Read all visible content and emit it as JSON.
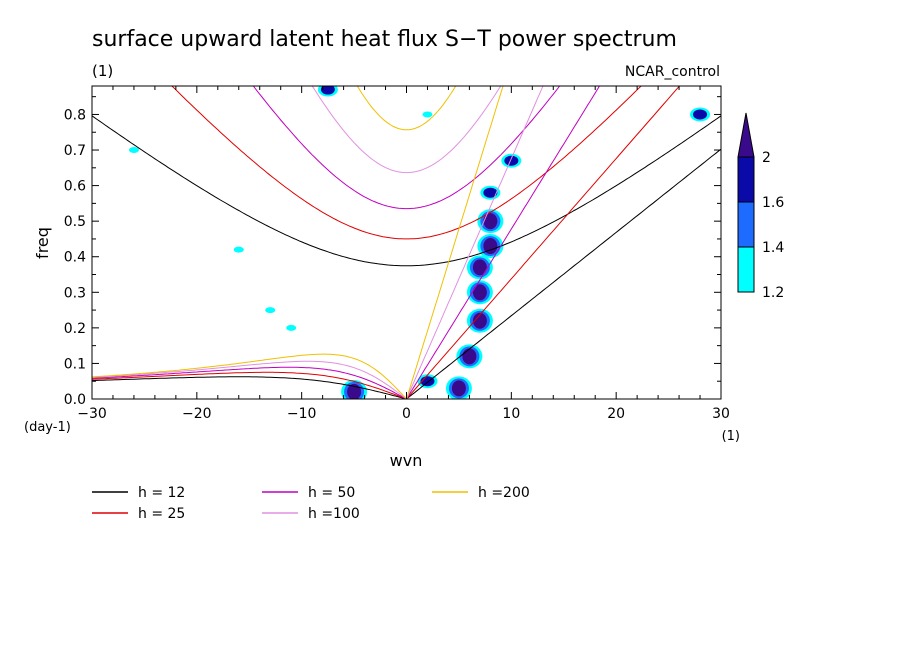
{
  "chart_data": {
    "type": "contour",
    "title": "surface upward latent heat flux S−T power spectrum",
    "subtitle_left": "(1)",
    "subtitle_right": "NCAR_control",
    "xlabel": "wvn",
    "ylabel": "freq",
    "x_unit": "(1)",
    "y_unit": "(day-1)",
    "xlim": [
      -30,
      30
    ],
    "ylim": [
      0,
      0.88
    ],
    "x_ticks": [
      -30,
      -20,
      -10,
      0,
      10,
      20,
      30
    ],
    "y_ticks": [
      0.0,
      0.1,
      0.2,
      0.3,
      0.4,
      0.5,
      0.6,
      0.7,
      0.8
    ],
    "x_tick_labels": [
      "−30",
      "−20",
      "−10",
      "0",
      "10",
      "20",
      "30"
    ],
    "y_tick_labels": [
      "0.0",
      "0.1",
      "0.2",
      "0.3",
      "0.4",
      "0.5",
      "0.6",
      "0.7",
      "0.8"
    ],
    "colorbar": {
      "levels": [
        "1.2",
        "1.4",
        "1.6",
        "2"
      ],
      "colors": [
        "#00ffff",
        "#1e6cff",
        "#0a0aa8",
        "#3a0a8c"
      ]
    },
    "dispersion_curves": [
      {
        "name": "h = 12",
        "color": "#000000",
        "equivalent_depth": 12
      },
      {
        "name": "h = 25",
        "color": "#e00000",
        "equivalent_depth": 25
      },
      {
        "name": "h = 50",
        "color": "#c000c0",
        "equivalent_depth": 50
      },
      {
        "name": "h =100",
        "color": "#e090e0",
        "equivalent_depth": 100
      },
      {
        "name": "h =200",
        "color": "#f0c000",
        "equivalent_depth": 200
      }
    ],
    "features": [
      {
        "wvn": 5,
        "freq": 0.03,
        "level": "2"
      },
      {
        "wvn": -5,
        "freq": 0.02,
        "level": "2"
      },
      {
        "wvn": 6,
        "freq": 0.12,
        "level": "2"
      },
      {
        "wvn": 7,
        "freq": 0.22,
        "level": "2"
      },
      {
        "wvn": 7,
        "freq": 0.3,
        "level": "2"
      },
      {
        "wvn": 7,
        "freq": 0.37,
        "level": "2"
      },
      {
        "wvn": 8,
        "freq": 0.43,
        "level": "2"
      },
      {
        "wvn": 8,
        "freq": 0.5,
        "level": "2"
      },
      {
        "wvn": 8,
        "freq": 0.58,
        "level": "1.6"
      },
      {
        "wvn": 10,
        "freq": 0.67,
        "level": "1.6"
      },
      {
        "wvn": 2,
        "freq": 0.05,
        "level": "1.6"
      },
      {
        "wvn": -7.5,
        "freq": 0.87,
        "level": "1.6"
      },
      {
        "wvn": 28,
        "freq": 0.8,
        "level": "1.6"
      },
      {
        "wvn": 2,
        "freq": 0.8,
        "level": "1.2"
      },
      {
        "wvn": -13,
        "freq": 0.25,
        "level": "1.2"
      },
      {
        "wvn": -11,
        "freq": 0.2,
        "level": "1.2"
      },
      {
        "wvn": -26,
        "freq": 0.7,
        "level": "1.2"
      },
      {
        "wvn": -16,
        "freq": 0.42,
        "level": "1.2"
      }
    ]
  }
}
